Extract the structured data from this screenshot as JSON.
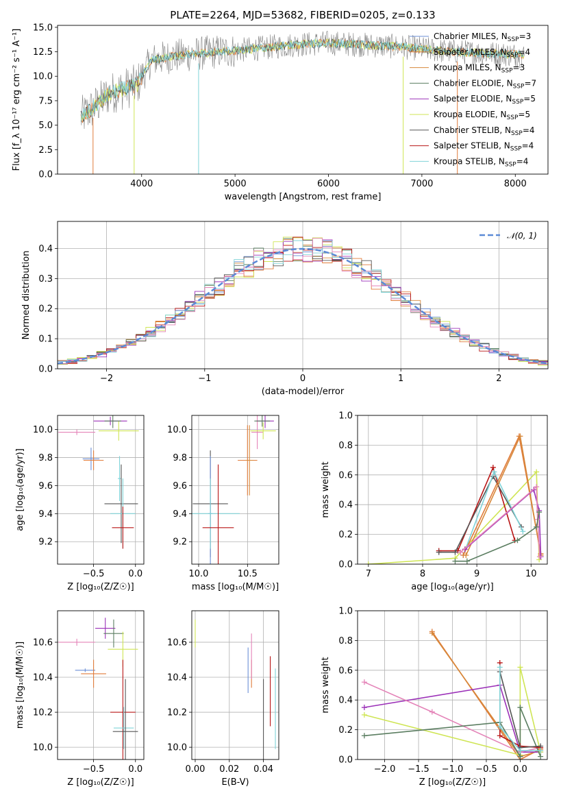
{
  "colors": {
    "chabrier_miles": "#6b8fd6",
    "salpeter_miles": "#e07b3a",
    "kroupa_miles": "#d7883a",
    "chabrier_elodie": "#5a7d60",
    "salpeter_elodie": "#9b30b8",
    "kroupa_elodie": "#cfe554",
    "chabrier_stelib": "#555555",
    "salpeter_stelib": "#b81414",
    "kroupa_stelib": "#7fd3d8",
    "gauss": "#5b8ad6",
    "pink": "#e483b8"
  },
  "chart_data": [
    {
      "type": "line",
      "title": "PLATE=2264, MJD=53682, FIBERID=0205, z=0.133",
      "xlabel": "wavelength [Angstrom, rest frame]",
      "ylabel": "Flux [f_λ 10⁻¹⁷ erg cm⁻² s⁻¹ A⁻¹]",
      "xlim": [
        3100,
        8350
      ],
      "ylim": [
        0,
        15.2
      ],
      "xticks": [
        "4000",
        "5000",
        "6000",
        "7000",
        "8000"
      ],
      "yticks": [
        "0.0",
        "2.5",
        "5.0",
        "7.5",
        "10.0",
        "12.5",
        "15.0"
      ],
      "legend": "right",
      "series": [
        {
          "name": "Chabrier MILES, N",
          "sub": "SSP",
          "suffix": "=3"
        },
        {
          "name": "Salpeter MILES, N",
          "sub": "SSP",
          "suffix": "=4"
        },
        {
          "name": "Kroupa MILES, N",
          "sub": "SSP",
          "suffix": "=3"
        },
        {
          "name": "Chabrier ELODIE, N",
          "sub": "SSP",
          "suffix": "=7"
        },
        {
          "name": "Salpeter ELODIE, N",
          "sub": "SSP",
          "suffix": "=5"
        },
        {
          "name": "Kroupa ELODIE, N",
          "sub": "SSP",
          "suffix": "=5"
        },
        {
          "name": "Chabrier STELIB, N",
          "sub": "SSP",
          "suffix": "=4"
        },
        {
          "name": "Salpeter STELIB, N",
          "sub": "SSP",
          "suffix": "=4"
        },
        {
          "name": "Kroupa STELIB, N",
          "sub": "SSP",
          "suffix": "=4"
        }
      ],
      "envelope_x": [
        3350,
        3500,
        3650,
        3800,
        3950,
        4100,
        4300,
        4500,
        4800,
        5000,
        5200,
        5400,
        5600,
        5800,
        6000,
        6200,
        6400,
        6600,
        6800,
        7000,
        7200,
        7400,
        7600,
        7800,
        8000,
        8100
      ],
      "envelope_y": [
        5.8,
        6.9,
        8.2,
        8.7,
        9.1,
        11.6,
        12.0,
        12.2,
        12.5,
        12.6,
        12.8,
        13.0,
        13.2,
        13.3,
        13.4,
        13.3,
        13.2,
        13.1,
        13.0,
        12.8,
        12.6,
        12.5,
        12.4,
        12.3,
        12.2,
        12.1
      ]
    },
    {
      "type": "area",
      "xlabel": "(data-model)/error",
      "ylabel": "Normed distribution",
      "xlim": [
        -2.5,
        2.5
      ],
      "ylim": [
        0,
        0.49
      ],
      "xticks": [
        "−2",
        "−1",
        "0",
        "1",
        "2"
      ],
      "yticks": [
        "0.0",
        "0.1",
        "0.2",
        "0.3",
        "0.4"
      ],
      "legend_label": "𝒩(0, 1)",
      "gauss": {
        "mean": 0,
        "sigma": 1
      }
    },
    {
      "type": "scatter",
      "xlabel": "Z [log₁₀(Z/Z☉)]",
      "ylabel": "age  [log₁₀(age/yr)]",
      "xlim": [
        -0.93,
        0.1
      ],
      "ylim": [
        9.04,
        10.1
      ],
      "xticks": [
        "−0.5",
        "0.0"
      ],
      "yticks": [
        "9.2",
        "9.4",
        "9.6",
        "9.8",
        "10.0"
      ],
      "points": [
        {
          "c": "pink",
          "x": -0.7,
          "y": 9.98,
          "xerr": 0.22,
          "yerr": 0.02
        },
        {
          "c": "salpeter_elodie",
          "x": -0.3,
          "y": 10.06,
          "xerr": 0.2,
          "yerr": 0.03
        },
        {
          "c": "kroupa_elodie",
          "x": -0.2,
          "y": 9.99,
          "xerr": 0.24,
          "yerr": 0.07
        },
        {
          "c": "chabrier_elodie",
          "x": -0.27,
          "y": 10.06,
          "xerr": 0.1,
          "yerr": 0.05
        },
        {
          "c": "chabrier_miles",
          "x": -0.53,
          "y": 9.79,
          "xerr": 0.1,
          "yerr": 0.08
        },
        {
          "c": "salpeter_miles",
          "x": -0.5,
          "y": 9.78,
          "xerr": 0.12,
          "yerr": 0.07
        },
        {
          "c": "kroupa_stelib",
          "x": -0.19,
          "y": 9.65,
          "xerr": 0.02,
          "yerr": 0.16
        },
        {
          "c": "chabrier_stelib",
          "x": -0.17,
          "y": 9.47,
          "xerr": 0.2,
          "yerr": 0.28
        },
        {
          "c": "kroupa_stelib",
          "x": -0.15,
          "y": 9.4,
          "xerr": 0.15,
          "yerr": 0.25
        },
        {
          "c": "salpeter_stelib",
          "x": -0.15,
          "y": 9.3,
          "xerr": 0.13,
          "yerr": 0.15
        }
      ]
    },
    {
      "type": "scatter",
      "xlabel": "mass [log₁₀(M/M☉)]",
      "ylabel": "",
      "xlim": [
        9.93,
        10.82
      ],
      "ylim": [
        9.04,
        10.1
      ],
      "xticks": [
        "10.0",
        "10.5"
      ],
      "yticks": [
        "9.2",
        "9.4",
        "9.6",
        "9.8",
        "10.0"
      ],
      "points": [
        {
          "c": "chabrier_stelib",
          "x": 10.12,
          "y": 9.47,
          "xerr": 0.18,
          "yerr": 0.38
        },
        {
          "c": "chabrier_miles",
          "x": 10.12,
          "y": 9.4,
          "xerr": 0.02,
          "yerr": 0.41
        },
        {
          "c": "kroupa_stelib",
          "x": 10.12,
          "y": 9.4,
          "xerr": 0.3,
          "yerr": 0.25
        },
        {
          "c": "salpeter_stelib",
          "x": 10.2,
          "y": 9.3,
          "xerr": 0.16,
          "yerr": 0.45
        },
        {
          "c": "salpeter_miles",
          "x": 10.5,
          "y": 9.78,
          "xerr": 0.1,
          "yerr": 0.25
        },
        {
          "c": "kroupa_miles",
          "x": 10.52,
          "y": 9.78,
          "xerr": 0.04,
          "yerr": 0.25
        },
        {
          "c": "pink",
          "x": 10.6,
          "y": 9.98,
          "xerr": 0.06,
          "yerr": 0.12
        },
        {
          "c": "salpeter_elodie",
          "x": 10.68,
          "y": 10.06,
          "xerr": 0.09,
          "yerr": 0.05
        },
        {
          "c": "kroupa_elodie",
          "x": 10.66,
          "y": 9.99,
          "xerr": 0.13,
          "yerr": 0.06
        },
        {
          "c": "chabrier_elodie",
          "x": 10.65,
          "y": 10.06,
          "xerr": 0.08,
          "yerr": 0.04
        }
      ]
    },
    {
      "type": "line",
      "xlabel": "age  [log₁₀(age/yr)]",
      "ylabel": "mass weight",
      "xlim": [
        6.8,
        10.3
      ],
      "ylim": [
        0,
        1.0
      ],
      "xticks": [
        "7",
        "8",
        "9",
        "10"
      ],
      "yticks": [
        "0.0",
        "0.2",
        "0.4",
        "0.6",
        "0.8",
        "1.0"
      ],
      "series": [
        {
          "c": "kroupa_elodie",
          "points": [
            [
              7.0,
              0.0
            ],
            [
              8.6,
              0.04
            ],
            [
              10.1,
              0.62
            ],
            [
              10.15,
              0.03
            ]
          ]
        },
        {
          "c": "salpeter_stelib",
          "points": [
            [
              8.3,
              0.09
            ],
            [
              8.65,
              0.09
            ],
            [
              9.3,
              0.65
            ],
            [
              9.7,
              0.16
            ]
          ]
        },
        {
          "c": "chabrier_stelib",
          "points": [
            [
              8.3,
              0.08
            ],
            [
              8.6,
              0.08
            ],
            [
              9.3,
              0.59
            ],
            [
              9.82,
              0.25
            ]
          ]
        },
        {
          "c": "kroupa_stelib",
          "points": [
            [
              8.75,
              0.06
            ],
            [
              9.32,
              0.62
            ],
            [
              9.85,
              0.22
            ]
          ]
        },
        {
          "c": "salpeter_miles",
          "points": [
            [
              8.75,
              0.06
            ],
            [
              9.78,
              0.86
            ],
            [
              10.18,
              0.07
            ]
          ]
        },
        {
          "c": "kroupa_miles",
          "points": [
            [
              8.8,
              0.06
            ],
            [
              9.8,
              0.86
            ],
            [
              10.18,
              0.06
            ]
          ]
        },
        {
          "c": "salpeter_elodie",
          "points": [
            [
              8.78,
              0.1
            ],
            [
              10.05,
              0.5
            ],
            [
              10.15,
              0.36
            ],
            [
              10.18,
              0.05
            ]
          ]
        },
        {
          "c": "pink",
          "points": [
            [
              8.7,
              0.08
            ],
            [
              10.1,
              0.52
            ],
            [
              10.12,
              0.3
            ],
            [
              10.16,
              0.05
            ]
          ]
        },
        {
          "c": "chabrier_elodie",
          "points": [
            [
              8.6,
              0.02
            ],
            [
              8.82,
              0.02
            ],
            [
              9.75,
              0.16
            ],
            [
              10.1,
              0.25
            ],
            [
              10.15,
              0.35
            ]
          ]
        }
      ]
    },
    {
      "type": "scatter",
      "xlabel": "Z [log₁₀(Z/Z☉)]",
      "ylabel": "mass [log₁₀(M/M☉)]",
      "xlim": [
        -0.93,
        0.1
      ],
      "ylim": [
        9.93,
        10.78
      ],
      "xticks": [
        "−0.5",
        "0.0"
      ],
      "yticks": [
        "10.0",
        "10.2",
        "10.4",
        "10.6"
      ],
      "points": [
        {
          "c": "pink",
          "x": -0.7,
          "y": 10.6,
          "xerr": 0.22,
          "yerr": 0.02
        },
        {
          "c": "salpeter_elodie",
          "x": -0.36,
          "y": 10.68,
          "xerr": 0.12,
          "yerr": 0.06
        },
        {
          "c": "chabrier_elodie",
          "x": -0.26,
          "y": 10.65,
          "xerr": 0.12,
          "yerr": 0.08
        },
        {
          "c": "kroupa_elodie",
          "x": -0.15,
          "y": 10.56,
          "xerr": 0.18,
          "yerr": 0.1
        },
        {
          "c": "chabrier_miles",
          "x": -0.6,
          "y": 10.44,
          "xerr": 0.12,
          "yerr": 0.01
        },
        {
          "c": "salpeter_miles",
          "x": -0.5,
          "y": 10.42,
          "xerr": 0.15,
          "yerr": 0.08
        },
        {
          "c": "salpeter_stelib",
          "x": -0.15,
          "y": 10.2,
          "xerr": 0.15,
          "yerr": 0.3
        },
        {
          "c": "kroupa_stelib",
          "x": -0.14,
          "y": 10.11,
          "xerr": 0.12,
          "yerr": 0.12
        },
        {
          "c": "chabrier_stelib",
          "x": -0.12,
          "y": 10.09,
          "xerr": 0.15,
          "yerr": 0.3
        }
      ]
    },
    {
      "type": "scatter",
      "xlabel": "E(B-V)",
      "ylabel": "",
      "xlim": [
        -0.002,
        0.049
      ],
      "ylim": [
        9.93,
        10.78
      ],
      "xticks": [
        "0.00",
        "0.02",
        "0.04"
      ],
      "yticks": [
        "10.0",
        "10.2",
        "10.4",
        "10.6"
      ],
      "points": [
        {
          "c": "kroupa_elodie",
          "x": 0.0,
          "y": 10.65,
          "xerr": 0,
          "yerr": 0.08
        },
        {
          "c": "chabrier_miles",
          "x": 0.031,
          "y": 10.44,
          "xerr": 0,
          "yerr": 0.13
        },
        {
          "c": "salpeter_miles",
          "x": 0.033,
          "y": 10.42,
          "xerr": 0,
          "yerr": 0.08
        },
        {
          "c": "pink",
          "x": 0.033,
          "y": 10.52,
          "xerr": 0,
          "yerr": 0.13
        },
        {
          "c": "chabrier_stelib",
          "x": 0.04,
          "y": 10.09,
          "xerr": 0,
          "yerr": 0.3
        },
        {
          "c": "salpeter_stelib",
          "x": 0.044,
          "y": 10.32,
          "xerr": 0,
          "yerr": 0.2
        },
        {
          "c": "kroupa_stelib",
          "x": 0.047,
          "y": 10.22,
          "xerr": 0,
          "yerr": 0.23
        }
      ]
    },
    {
      "type": "line",
      "xlabel": "Z [log₁₀(Z/Z☉)]",
      "ylabel": "mass weight",
      "xlim": [
        -2.4,
        0.4
      ],
      "ylim": [
        0,
        1.0
      ],
      "xticks": [
        "−2.0",
        "−1.5",
        "−1.0",
        "−0.5",
        "0.0"
      ],
      "yticks": [
        "0.0",
        "0.2",
        "0.4",
        "0.6",
        "0.8",
        "1.0"
      ],
      "series": [
        {
          "c": "salpeter_miles",
          "points": [
            [
              -1.3,
              0.86
            ],
            [
              0.0,
              0.0
            ],
            [
              0.3,
              0.07
            ]
          ]
        },
        {
          "c": "kroupa_miles",
          "points": [
            [
              -1.3,
              0.85
            ],
            [
              0.0,
              0.02
            ],
            [
              0.3,
              0.06
            ]
          ]
        },
        {
          "c": "salpeter_elodie",
          "points": [
            [
              -2.3,
              0.35
            ],
            [
              -0.3,
              0.5
            ],
            [
              0.0,
              0.05
            ],
            [
              0.3,
              0.05
            ]
          ]
        },
        {
          "c": "pink",
          "points": [
            [
              -2.3,
              0.52
            ],
            [
              -1.3,
              0.32
            ],
            [
              0.0,
              0.05
            ],
            [
              0.3,
              0.08
            ]
          ]
        },
        {
          "c": "kroupa_elodie",
          "points": [
            [
              -2.3,
              0.3
            ],
            [
              0.0,
              0.03
            ],
            [
              0.0,
              0.62
            ],
            [
              0.3,
              0.05
            ]
          ]
        },
        {
          "c": "chabrier_elodie",
          "points": [
            [
              -2.3,
              0.16
            ],
            [
              -0.3,
              0.25
            ],
            [
              0.0,
              0.02
            ],
            [
              0.0,
              0.35
            ],
            [
              0.3,
              0.02
            ]
          ]
        },
        {
          "c": "salpeter_stelib",
          "points": [
            [
              -0.3,
              0.65
            ],
            [
              -0.3,
              0.16
            ],
            [
              0.0,
              0.09
            ],
            [
              0.3,
              0.08
            ]
          ]
        },
        {
          "c": "chabrier_stelib",
          "points": [
            [
              -0.3,
              0.59
            ],
            [
              0.0,
              0.08
            ],
            [
              0.3,
              0.09
            ]
          ]
        },
        {
          "c": "kroupa_stelib",
          "points": [
            [
              -0.3,
              0.62
            ],
            [
              -0.3,
              0.22
            ],
            [
              0.0,
              0.06
            ],
            [
              0.3,
              0.06
            ]
          ]
        }
      ]
    }
  ]
}
